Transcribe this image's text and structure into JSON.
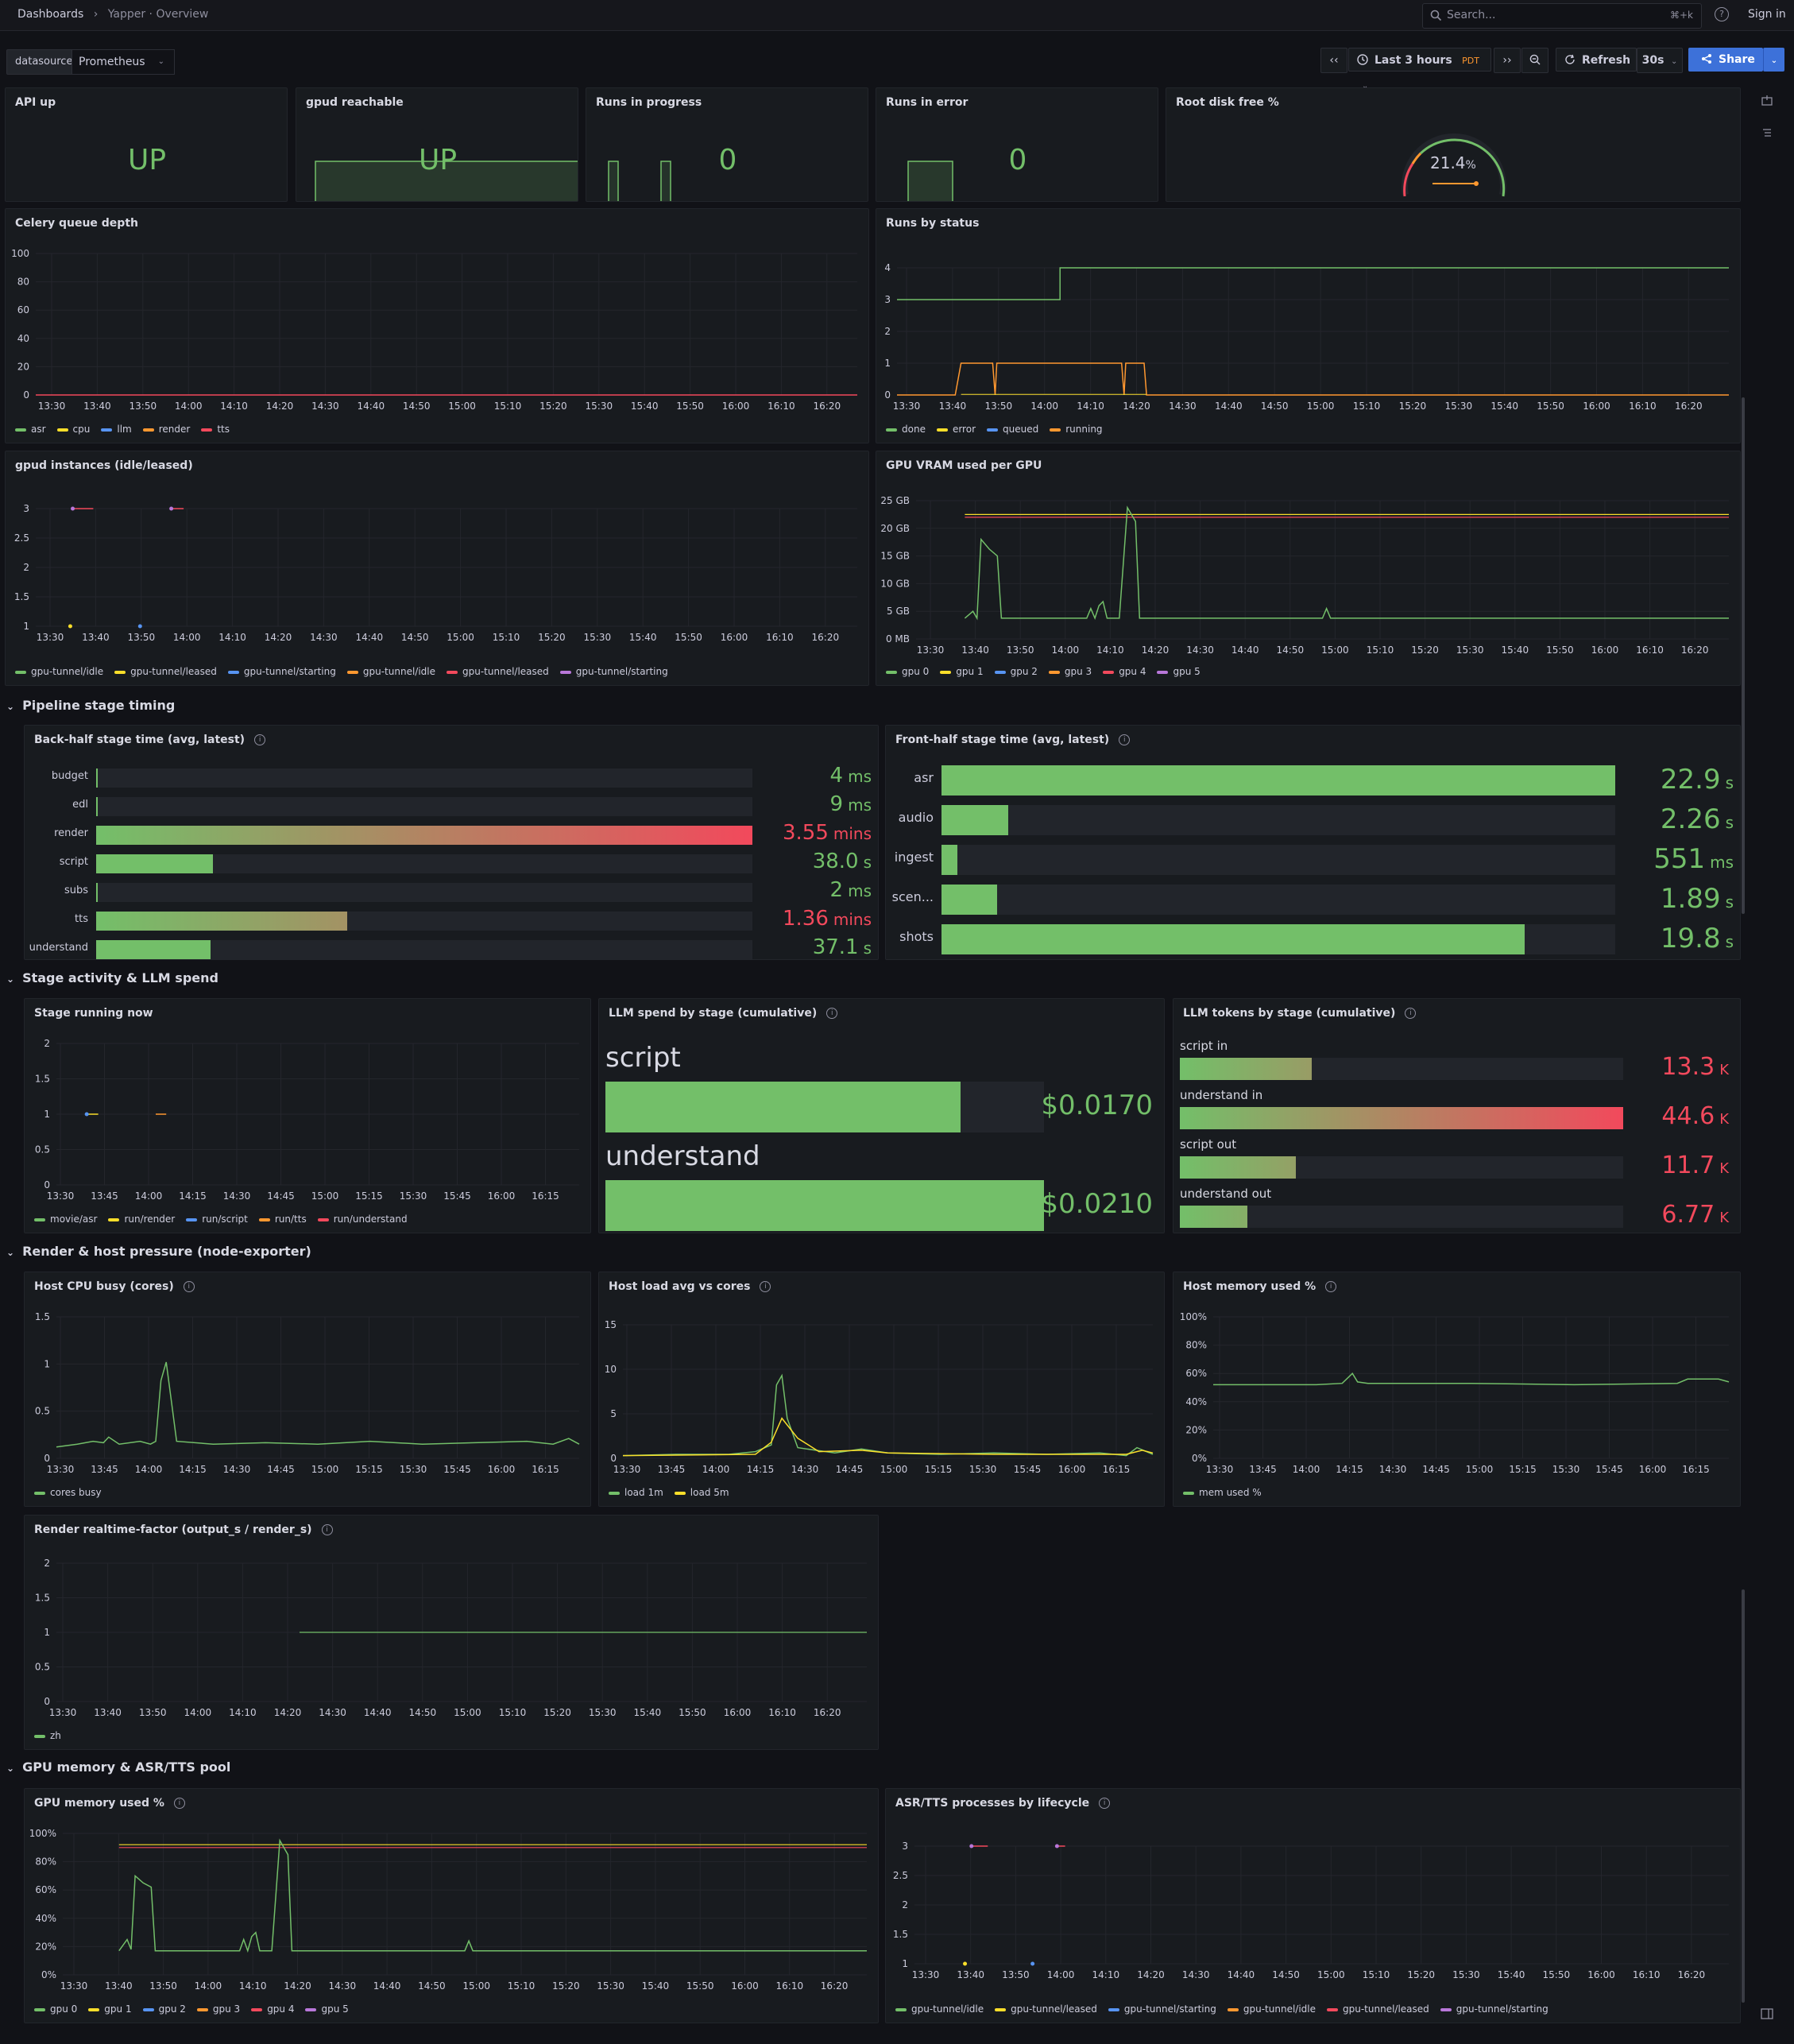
{
  "header": {
    "breadcrumb_root": "Dashboards",
    "breadcrumb_sep": "›",
    "breadcrumb_current": "Yapper · Overview",
    "search_placeholder": "Search...",
    "search_shortcut": "⌘+k",
    "signin": "Sign in"
  },
  "toolbar": {
    "var_label": "datasource",
    "var_value": "Prometheus",
    "time_range": "Last 3 hours",
    "timezone": "PDT",
    "refresh": "Refresh",
    "refresh_interval": "30s",
    "share": "Share"
  },
  "stats": {
    "api_up": {
      "title": "API up",
      "value": "UP"
    },
    "gpud": {
      "title": "gpud reachable",
      "value": "UP"
    },
    "runs_progress": {
      "title": "Runs in progress",
      "value": "0"
    },
    "runs_error": {
      "title": "Runs in error",
      "value": "0"
    },
    "disk": {
      "title": "Root disk free %",
      "value": "21.4",
      "unit": "%",
      "gauge_fraction": 0.214
    }
  },
  "time_ticks_10m": [
    "13:30",
    "13:40",
    "13:50",
    "14:00",
    "14:10",
    "14:20",
    "14:30",
    "14:40",
    "14:50",
    "15:00",
    "15:10",
    "15:20",
    "15:30",
    "15:40",
    "15:50",
    "16:00",
    "16:10",
    "16:20"
  ],
  "time_ticks_15m": [
    "13:30",
    "13:45",
    "14:00",
    "14:15",
    "14:30",
    "14:45",
    "15:00",
    "15:15",
    "15:30",
    "15:45",
    "16:00",
    "16:15"
  ],
  "panels": {
    "celery": {
      "title": "Celery queue depth",
      "yticks": [
        "100",
        "80",
        "60",
        "40",
        "20",
        "0"
      ],
      "legend": [
        {
          "name": "asr",
          "color": "#73bf69"
        },
        {
          "name": "cpu",
          "color": "#fade2a"
        },
        {
          "name": "llm",
          "color": "#5794f2"
        },
        {
          "name": "render",
          "color": "#ff9830"
        },
        {
          "name": "tts",
          "color": "#f2495c"
        }
      ]
    },
    "runs_status": {
      "title": "Runs by status",
      "yticks": [
        "4",
        "3",
        "2",
        "1",
        "0"
      ],
      "legend": [
        {
          "name": "done",
          "color": "#73bf69"
        },
        {
          "name": "error",
          "color": "#fade2a"
        },
        {
          "name": "queued",
          "color": "#5794f2"
        },
        {
          "name": "running",
          "color": "#ff9830"
        }
      ]
    },
    "gpud_inst": {
      "title": "gpud instances (idle/leased)",
      "yticks": [
        "3",
        "2.5",
        "2",
        "1.5",
        "1"
      ],
      "legend": [
        {
          "name": "gpu-tunnel/idle",
          "color": "#73bf69"
        },
        {
          "name": "gpu-tunnel/leased",
          "color": "#fade2a"
        },
        {
          "name": "gpu-tunnel/starting",
          "color": "#5794f2"
        },
        {
          "name": "gpu-tunnel/idle",
          "color": "#ff9830"
        },
        {
          "name": "gpu-tunnel/leased",
          "color": "#f2495c"
        },
        {
          "name": "gpu-tunnel/starting",
          "color": "#b877d9"
        }
      ]
    },
    "vram": {
      "title": "GPU VRAM used per GPU",
      "yticks": [
        "25 GB",
        "20 GB",
        "15 GB",
        "10 GB",
        "5 GB",
        "0 MB"
      ],
      "legend": [
        {
          "name": "gpu 0",
          "color": "#73bf69"
        },
        {
          "name": "gpu 1",
          "color": "#fade2a"
        },
        {
          "name": "gpu 2",
          "color": "#5794f2"
        },
        {
          "name": "gpu 3",
          "color": "#ff9830"
        },
        {
          "name": "gpu 4",
          "color": "#f2495c"
        },
        {
          "name": "gpu 5",
          "color": "#b877d9"
        }
      ]
    },
    "backhalf": {
      "title": "Back-half stage time (avg, latest)",
      "rows": [
        {
          "label": "budget",
          "value": "4",
          "unit": "ms",
          "fraction": 0.002,
          "color": "green"
        },
        {
          "label": "edl",
          "value": "9",
          "unit": "ms",
          "fraction": 0.002,
          "color": "green"
        },
        {
          "label": "render",
          "value": "3.55",
          "unit": "mins",
          "fraction": 1.0,
          "color": "red"
        },
        {
          "label": "script",
          "value": "38.0",
          "unit": "s",
          "fraction": 0.178,
          "color": "green"
        },
        {
          "label": "subs",
          "value": "2",
          "unit": "ms",
          "fraction": 0.002,
          "color": "green"
        },
        {
          "label": "tts",
          "value": "1.36",
          "unit": "mins",
          "fraction": 0.383,
          "color": "red"
        },
        {
          "label": "understand",
          "value": "37.1",
          "unit": "s",
          "fraction": 0.174,
          "color": "green"
        }
      ]
    },
    "fronthalf": {
      "title": "Front-half stage time (avg, latest)",
      "rows": [
        {
          "label": "asr",
          "value": "22.9",
          "unit": "s",
          "fraction": 1.0
        },
        {
          "label": "audio",
          "value": "2.26",
          "unit": "s",
          "fraction": 0.099
        },
        {
          "label": "ingest",
          "value": "551",
          "unit": "ms",
          "fraction": 0.024
        },
        {
          "label": "scen...",
          "value": "1.89",
          "unit": "s",
          "fraction": 0.083
        },
        {
          "label": "shots",
          "value": "19.8",
          "unit": "s",
          "fraction": 0.865
        }
      ]
    },
    "stage_running": {
      "title": "Stage running now",
      "yticks": [
        "2",
        "1.5",
        "1",
        "0.5",
        "0"
      ],
      "legend": [
        {
          "name": "movie/asr",
          "color": "#73bf69"
        },
        {
          "name": "run/render",
          "color": "#fade2a"
        },
        {
          "name": "run/script",
          "color": "#5794f2"
        },
        {
          "name": "run/tts",
          "color": "#ff9830"
        },
        {
          "name": "run/understand",
          "color": "#f2495c"
        }
      ]
    },
    "llm_spend": {
      "title": "LLM spend by stage (cumulative)",
      "rows": [
        {
          "label": "script",
          "value": "$0.0170",
          "fraction": 0.81
        },
        {
          "label": "understand",
          "value": "$0.0210",
          "fraction": 1.0
        }
      ]
    },
    "llm_tokens": {
      "title": "LLM tokens by stage (cumulative)",
      "rows": [
        {
          "label": "script in",
          "value": "13.3",
          "unit": "K",
          "fraction": 0.298
        },
        {
          "label": "understand in",
          "value": "44.6",
          "unit": "K",
          "fraction": 1.0
        },
        {
          "label": "script out",
          "value": "11.7",
          "unit": "K",
          "fraction": 0.262
        },
        {
          "label": "understand out",
          "value": "6.77",
          "unit": "K",
          "fraction": 0.152
        }
      ]
    },
    "host_cpu": {
      "title": "Host CPU busy (cores)",
      "yticks": [
        "1.5",
        "1",
        "0.5",
        "0"
      ],
      "legend": [
        {
          "name": "cores busy",
          "color": "#73bf69"
        }
      ]
    },
    "host_load": {
      "title": "Host load avg vs cores",
      "yticks": [
        "15",
        "10",
        "5",
        "0"
      ],
      "legend": [
        {
          "name": "load 1m",
          "color": "#73bf69"
        },
        {
          "name": "load 5m",
          "color": "#fade2a"
        }
      ]
    },
    "host_mem": {
      "title": "Host memory used %",
      "yticks": [
        "100%",
        "80%",
        "60%",
        "40%",
        "20%",
        "0%"
      ],
      "legend": [
        {
          "name": "mem used %",
          "color": "#73bf69"
        }
      ]
    },
    "render_rt": {
      "title": "Render realtime-factor (output_s / render_s)",
      "yticks": [
        "2",
        "1.5",
        "1",
        "0.5",
        "0"
      ],
      "legend": [
        {
          "name": "zh",
          "color": "#73bf69"
        }
      ]
    },
    "gpu_mem": {
      "title": "GPU memory used %",
      "yticks": [
        "100%",
        "80%",
        "60%",
        "40%",
        "20%",
        "0%"
      ],
      "legend": [
        {
          "name": "gpu 0",
          "color": "#73bf69"
        },
        {
          "name": "gpu 1",
          "color": "#fade2a"
        },
        {
          "name": "gpu 2",
          "color": "#5794f2"
        },
        {
          "name": "gpu 3",
          "color": "#ff9830"
        },
        {
          "name": "gpu 4",
          "color": "#f2495c"
        },
        {
          "name": "gpu 5",
          "color": "#b877d9"
        }
      ]
    },
    "asr_tts": {
      "title": "ASR/TTS processes by lifecycle",
      "yticks": [
        "3",
        "2.5",
        "2",
        "1.5",
        "1"
      ],
      "legend": [
        {
          "name": "gpu-tunnel/idle",
          "color": "#73bf69"
        },
        {
          "name": "gpu-tunnel/leased",
          "color": "#fade2a"
        },
        {
          "name": "gpu-tunnel/starting",
          "color": "#5794f2"
        },
        {
          "name": "gpu-tunnel/idle",
          "color": "#ff9830"
        },
        {
          "name": "gpu-tunnel/leased",
          "color": "#f2495c"
        },
        {
          "name": "gpu-tunnel/starting",
          "color": "#b877d9"
        }
      ]
    }
  },
  "sections": {
    "pipeline": "Pipeline stage timing",
    "activity": "Stage activity & LLM spend",
    "render": "Render & host pressure (node-exporter)",
    "gpu": "GPU memory & ASR/TTS pool"
  },
  "colors": {
    "green": "#73bf69",
    "red": "#f2495c",
    "orange": "#ff9830",
    "yellow": "#fade2a",
    "blue": "#5794f2",
    "bg": "#111217",
    "panel": "#181b1f"
  }
}
